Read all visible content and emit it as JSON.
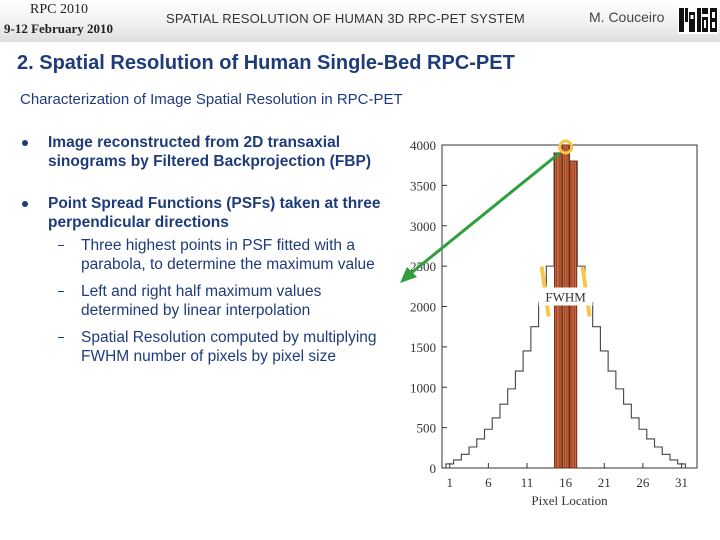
{
  "header": {
    "conference": "RPC 2010",
    "date": "9-12 February 2010",
    "title": "SPATIAL RESOLUTION OF HUMAN 3D RPC-PET SYSTEM",
    "author": "M. Couceiro",
    "logo_icon": "institution-logo-icon"
  },
  "slide": {
    "title": "2. Spatial Resolution of Human Single-Bed RPC-PET",
    "subtitle": "Characterization of Image Spatial Resolution in RPC-PET",
    "bullets": [
      {
        "text": "Image reconstructed from 2D transaxial sinograms by Filtered Backprojection (FBP)"
      },
      {
        "text": "Point Spread Functions (PSFs) taken at three perpendicular directions"
      }
    ],
    "subbullets": [
      "Three highest points in PSF fitted with a parabola, to determine the maximum value",
      "Left and right half maximum values determined by linear interpolation",
      "Spatial Resolution computed by multiplying FWHM number of pixels by pixel size"
    ]
  },
  "colors": {
    "title": "#1f3c7a",
    "bar_fill": "#c8663e",
    "marker": "#f5c64a",
    "arrow": "#2e9e3e"
  },
  "chart_data": {
    "type": "bar",
    "xlabel": "Pixel Location",
    "ylabel": "",
    "xlim": [
      0,
      33
    ],
    "ylim": [
      0,
      4000
    ],
    "x_ticks": [
      1,
      6,
      11,
      16,
      21,
      26,
      31
    ],
    "y_ticks": [
      0,
      500,
      1000,
      1500,
      2000,
      2500,
      3000,
      3500,
      4000
    ],
    "x": [
      1,
      2,
      3,
      4,
      5,
      6,
      7,
      8,
      9,
      10,
      11,
      12,
      13,
      14,
      15,
      16,
      17,
      18,
      19,
      20,
      21,
      22,
      23,
      24,
      25,
      26,
      27,
      28,
      29,
      30,
      31
    ],
    "values": [
      50,
      100,
      170,
      260,
      360,
      480,
      620,
      790,
      980,
      1200,
      1450,
      1750,
      2050,
      2500,
      3900,
      4000,
      3800,
      2500,
      2050,
      1750,
      1450,
      1200,
      980,
      790,
      620,
      480,
      360,
      260,
      170,
      100,
      50
    ],
    "highlighted_x": [
      15,
      16,
      17
    ],
    "annotations": [
      "FWHM"
    ]
  }
}
